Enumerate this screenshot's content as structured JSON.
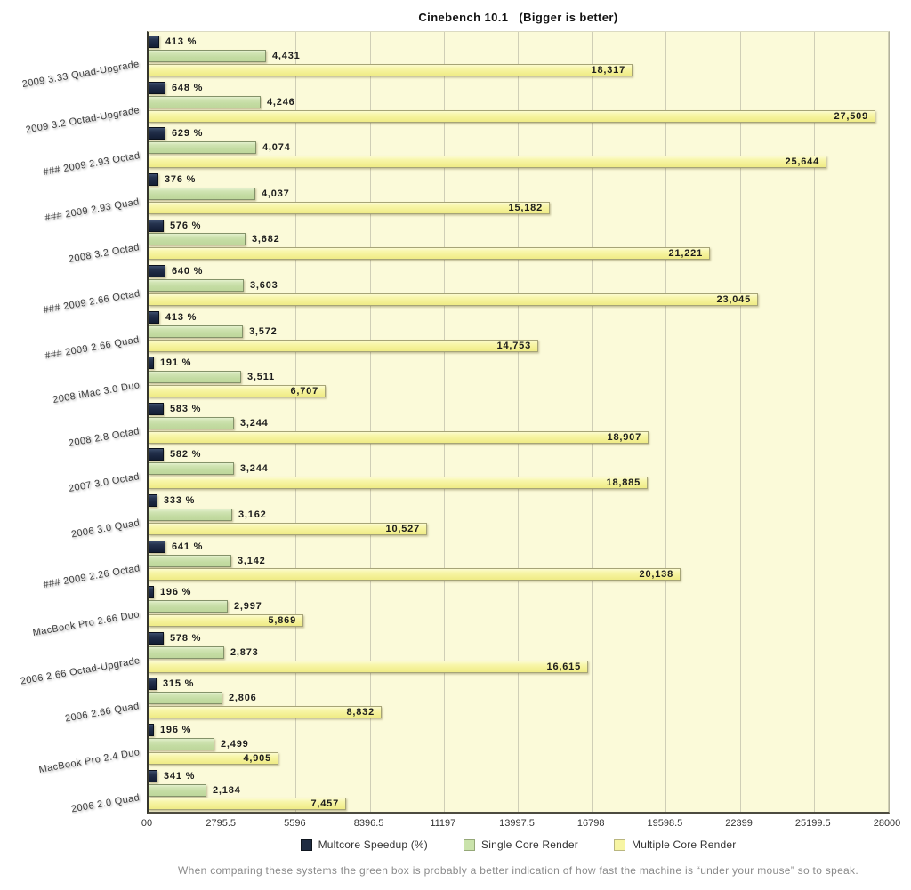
{
  "title": "Cinebench 10.1   (Bigger is better)",
  "footnote": "When comparing these systems the green box is probably a better indication of how fast the machine is “under your mouse” so to speak.",
  "chart_data": {
    "type": "bar",
    "orientation": "horizontal",
    "title": "Cinebench 10.1   (Bigger is better)",
    "categories": [
      "2009 3.33 Quad-Upgrade",
      "2009 3.2 Octad-Upgrade",
      "### 2009 2.93 Octad",
      "### 2009 2.93 Quad",
      "2008 3.2 Octad",
      "### 2009 2.66 Octad",
      "### 2009 2.66 Quad",
      "2008 iMac 3.0 Duo",
      "2008 2.8 Octad",
      "2007 3.0 Octad",
      "2006 3.0 Quad",
      "### 2009 2.26 Octad",
      "MacBook Pro 2.66 Duo",
      "2006 2.66 Octad-Upgrade",
      "2006 2.66 Quad",
      "MacBook Pro 2.4 Duo",
      "2006 2.0 Quad"
    ],
    "series": [
      {
        "name": "Multcore Speedup (%)",
        "color": "#1f2c42",
        "values": [
          413,
          648,
          629,
          376,
          576,
          640,
          413,
          191,
          583,
          582,
          333,
          641,
          196,
          578,
          315,
          196,
          341
        ],
        "value_labels": [
          "413 %",
          "648 %",
          "629 %",
          "376 %",
          "576 %",
          "640 %",
          "413 %",
          "191 %",
          "583 %",
          "582 %",
          "333 %",
          "641 %",
          "196 %",
          "578 %",
          "315 %",
          "196 %",
          "341 %"
        ]
      },
      {
        "name": "Single Core Render",
        "color": "#c4dca3",
        "values": [
          4431,
          4246,
          4074,
          4037,
          3682,
          3603,
          3572,
          3511,
          3244,
          3244,
          3162,
          3142,
          2997,
          2873,
          2806,
          2499,
          2184
        ],
        "value_labels": [
          "4,431",
          "4,246",
          "4,074",
          "4,037",
          "3,682",
          "3,603",
          "3,572",
          "3,511",
          "3,244",
          "3,244",
          "3,162",
          "3,142",
          "2,997",
          "2,873",
          "2,806",
          "2,499",
          "2,184"
        ]
      },
      {
        "name": "Multiple Core Render",
        "color": "#f3f094",
        "values": [
          18317,
          27509,
          25644,
          15182,
          21221,
          23045,
          14753,
          6707,
          18907,
          18885,
          10527,
          20138,
          5869,
          16615,
          8832,
          4905,
          7457
        ],
        "value_labels": [
          "18,317",
          "27,509",
          "25,644",
          "15,182",
          "21,221",
          "23,045",
          "14,753",
          "6,707",
          "18,907",
          "18,885",
          "10,527",
          "20,138",
          "5,869",
          "16,615",
          "8,832",
          "4,905",
          "7,457"
        ]
      }
    ],
    "xlim": [
      0,
      28000
    ],
    "x_ticks": [
      "00",
      "2795.5",
      "5596",
      "8396.5",
      "11197",
      "13997.5",
      "16798",
      "19598.5",
      "22399",
      "25199.5",
      "28000"
    ],
    "grid": true,
    "legend_position": "bottom"
  }
}
